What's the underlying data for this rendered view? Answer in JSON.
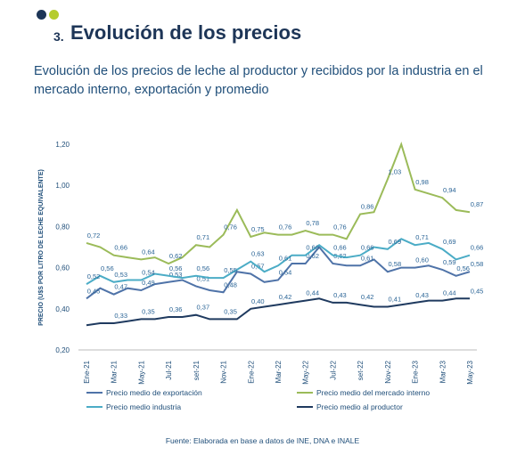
{
  "section": {
    "number": "3.",
    "title": "Evolución de los precios",
    "subtitle": "Evolución de los precios de leche al productor y recibidos por la industria en el mercado interno, exportación y promedio"
  },
  "source": "Fuente: Elaborada en base a datos de INE, DNA e INALE",
  "chart_data": {
    "type": "line",
    "y_label": "PRECIO (U$S POR LITRO DE LECHE EQUIVALENTE)",
    "categories": [
      "Ene-21",
      null,
      "Mar-21",
      null,
      "May-21",
      null,
      "Jul-21",
      null,
      "set-21",
      null,
      "Nov-21",
      null,
      "Ene-22",
      null,
      "Mar-22",
      null,
      "May-22",
      null,
      "Jul-22",
      null,
      "set-22",
      null,
      "Nov-22",
      null,
      "Ene-23",
      null,
      "Mar-23",
      null,
      "May-23"
    ],
    "ylim": [
      0.2,
      1.2
    ],
    "yticks": [
      {
        "value": 0.2,
        "label": "0,20"
      },
      {
        "value": 0.4,
        "label": "0,40"
      },
      {
        "value": 0.6,
        "label": "0,60"
      },
      {
        "value": 0.8,
        "label": "0,80"
      },
      {
        "value": 1.0,
        "label": "1,00"
      },
      {
        "value": 1.2,
        "label": "1,20"
      }
    ],
    "grid": false,
    "series": [
      {
        "name": "Precio medio de exportación",
        "color": "#4f73a8",
        "values": [
          0.45,
          0.5,
          0.47,
          0.5,
          0.49,
          0.52,
          0.53,
          0.54,
          0.51,
          0.49,
          0.48,
          0.58,
          0.57,
          0.53,
          0.54,
          0.62,
          0.62,
          0.7,
          0.62,
          0.61,
          0.61,
          0.64,
          0.58,
          0.6,
          0.6,
          0.61,
          0.59,
          0.56,
          0.58
        ],
        "value_labels": [
          "0,45",
          null,
          "0,47",
          null,
          "0,49",
          null,
          "0,53",
          null,
          "0,51",
          null,
          "0,48",
          null,
          "0,57",
          null,
          "0,54",
          null,
          "0,62",
          null,
          "0,62",
          null,
          "0,61",
          null,
          "0,58",
          null,
          "0,60",
          null,
          "0,59",
          "0,56",
          "0,58"
        ]
      },
      {
        "name": "Precio medio del mercado interno",
        "color": "#9bbb59",
        "values": [
          0.72,
          0.7,
          0.66,
          0.65,
          0.64,
          0.65,
          0.62,
          0.65,
          0.71,
          0.7,
          0.76,
          0.88,
          0.75,
          0.77,
          0.76,
          0.76,
          0.78,
          0.76,
          0.76,
          0.74,
          0.86,
          0.87,
          1.03,
          1.2,
          0.98,
          0.96,
          0.94,
          0.88,
          0.87
        ],
        "value_labels": [
          "0,72",
          null,
          "0,66",
          null,
          "0,64",
          null,
          "0,62",
          null,
          "0,71",
          null,
          "0,76",
          null,
          "0,75",
          null,
          "0,76",
          null,
          "0,78",
          null,
          "0,76",
          null,
          "0,86",
          null,
          "1,03",
          null,
          "0,98",
          null,
          "0,94",
          null,
          "0,87"
        ]
      },
      {
        "name": "Precio medio industria",
        "color": "#4bacc6",
        "values": [
          0.52,
          0.56,
          0.53,
          0.54,
          0.54,
          0.57,
          0.56,
          0.55,
          0.56,
          0.55,
          0.55,
          0.59,
          0.63,
          0.58,
          0.61,
          0.66,
          0.66,
          0.71,
          0.66,
          0.65,
          0.66,
          0.7,
          0.69,
          0.74,
          0.71,
          0.72,
          0.69,
          0.64,
          0.66
        ],
        "value_labels": [
          "0,52",
          "0,56",
          "0,53",
          null,
          "0,54",
          null,
          "0,56",
          null,
          "0,56",
          null,
          "0,55",
          null,
          "0,63",
          null,
          "0,61",
          null,
          "0,66",
          null,
          "0,66",
          null,
          "0,66",
          null,
          "0,69",
          null,
          "0,71",
          null,
          "0,69",
          null,
          "0,66"
        ]
      },
      {
        "name": "Precio medio al productor",
        "color": "#1f3a5f",
        "values": [
          0.32,
          0.33,
          0.33,
          0.34,
          0.35,
          0.35,
          0.36,
          0.36,
          0.37,
          0.35,
          0.35,
          0.35,
          0.4,
          0.41,
          0.42,
          0.43,
          0.44,
          0.45,
          0.43,
          0.43,
          0.42,
          0.41,
          0.41,
          0.42,
          0.43,
          0.44,
          0.44,
          0.45,
          0.45
        ],
        "value_labels": [
          null,
          null,
          "0,33",
          null,
          "0,35",
          null,
          "0,36",
          null,
          "0,37",
          null,
          "0,35",
          null,
          "0,40",
          null,
          "0,42",
          null,
          "0,44",
          null,
          "0,43",
          null,
          "0,42",
          null,
          "0,41",
          null,
          "0,43",
          null,
          "0,44",
          null,
          "0,45"
        ]
      }
    ]
  }
}
